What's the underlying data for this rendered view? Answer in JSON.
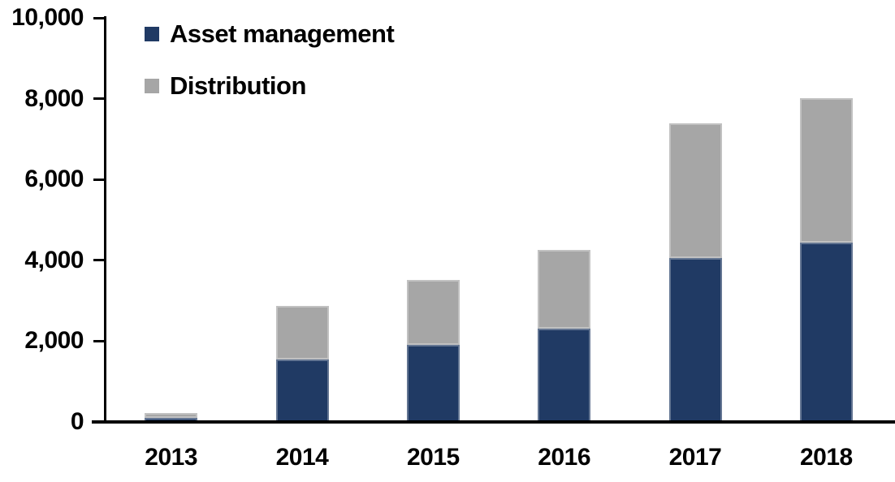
{
  "chart_data": {
    "type": "bar",
    "stacked": true,
    "title": "",
    "xlabel": "",
    "ylabel": "",
    "categories": [
      "2013",
      "2014",
      "2015",
      "2016",
      "2017",
      "2018"
    ],
    "series": [
      {
        "name": "Asset management",
        "color": "#203A64",
        "values": [
          100,
          1550,
          1900,
          2310,
          4050,
          4430
        ]
      },
      {
        "name": "Distribution",
        "color": "#A6A6A6",
        "values": [
          120,
          1320,
          1610,
          1950,
          3340,
          3580
        ]
      }
    ],
    "stack_totals": [
      220,
      2870,
      3510,
      4260,
      7390,
      8010
    ],
    "ylim": [
      0,
      10000
    ],
    "ytick_interval": 2000,
    "ytick_labels": [
      "0",
      "2,000",
      "4,000",
      "6,000",
      "8,000",
      "10,000"
    ],
    "grid": false,
    "legend_position": "top-left-inside",
    "axis_color": "#000000",
    "text_color": "#000000",
    "background_color": "#FFFFFF"
  }
}
